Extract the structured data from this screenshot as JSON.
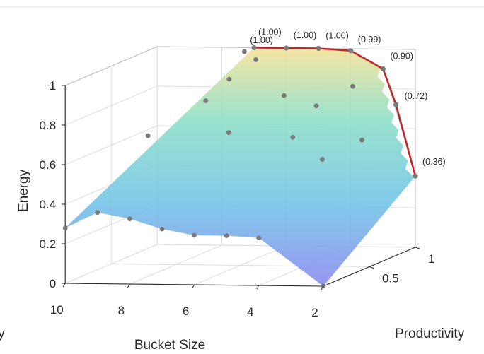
{
  "chart_data": {
    "type": "surface",
    "title": "",
    "xlabel": "Bucket Size",
    "ylabel": "Productivity",
    "zlabel": "Energy",
    "x_ticks": [
      "10",
      "8",
      "6",
      "4",
      "2"
    ],
    "y_ticks": [
      "0.5",
      "1"
    ],
    "z_ticks": [
      "0",
      "0.2",
      "0.4",
      "0.6",
      "0.8",
      "1"
    ],
    "xlim": [
      2,
      10
    ],
    "ylim": [
      0,
      1
    ],
    "zlim": [
      0,
      1
    ],
    "grid": true,
    "colormap": [
      "#8f8df0",
      "#77c6e8",
      "#92e0c9",
      "#f6e29a"
    ],
    "frontier_color": "#c0272d",
    "point_color": "#7a7a7a",
    "surface_edge": [
      {
        "x": 10,
        "y": 0.0,
        "z": 0.28
      },
      {
        "x": 9,
        "y": 0.0,
        "z": 0.36
      },
      {
        "x": 8,
        "y": 0.0,
        "z": 0.33
      },
      {
        "x": 7,
        "y": 0.0,
        "z": 0.28
      },
      {
        "x": 6,
        "y": 0.0,
        "z": 0.25
      },
      {
        "x": 5,
        "y": 0.0,
        "z": 0.25
      },
      {
        "x": 4,
        "y": 0.0,
        "z": 0.24
      },
      {
        "x": 2,
        "y": 0.0,
        "z": 0.0
      }
    ],
    "interior_points": [
      {
        "x": 9,
        "y": 0.55,
        "z": 0.64
      },
      {
        "x": 7.5,
        "y": 0.65,
        "z": 0.8
      },
      {
        "x": 7.2,
        "y": 0.8,
        "z": 0.88
      },
      {
        "x": 6.8,
        "y": 0.95,
        "z": 0.95
      },
      {
        "x": 6.5,
        "y": 0.55,
        "z": 0.66
      },
      {
        "x": 5.5,
        "y": 0.8,
        "z": 0.8
      },
      {
        "x": 4.8,
        "y": 0.65,
        "z": 0.62
      },
      {
        "x": 4.5,
        "y": 0.8,
        "z": 0.75
      },
      {
        "x": 3.8,
        "y": 0.95,
        "z": 0.82
      },
      {
        "x": 3.6,
        "y": 0.55,
        "z": 0.53
      },
      {
        "x": 2.8,
        "y": 0.7,
        "z": 0.6
      }
    ],
    "frontier": [
      {
        "x": 7,
        "y": 1,
        "z": 1.0,
        "label": "(1.00)"
      },
      {
        "x": 6,
        "y": 1,
        "z": 1.0,
        "label": "(1.00)"
      },
      {
        "x": 5,
        "y": 1,
        "z": 1.0,
        "label": "(1.00)"
      },
      {
        "x": 4,
        "y": 1,
        "z": 0.99,
        "label": "(0.99)"
      },
      {
        "x": 3,
        "y": 1,
        "z": 0.9,
        "label": "(0.90)"
      },
      {
        "x": 2.6,
        "y": 1,
        "z": 0.72,
        "label": "(0.72)"
      },
      {
        "x": 2,
        "y": 1,
        "z": 0.36,
        "label": "(0.36)"
      }
    ],
    "extra_point_label": {
      "x": 7.3,
      "y": 1,
      "z": 0.98,
      "label": "(1.00)"
    }
  }
}
